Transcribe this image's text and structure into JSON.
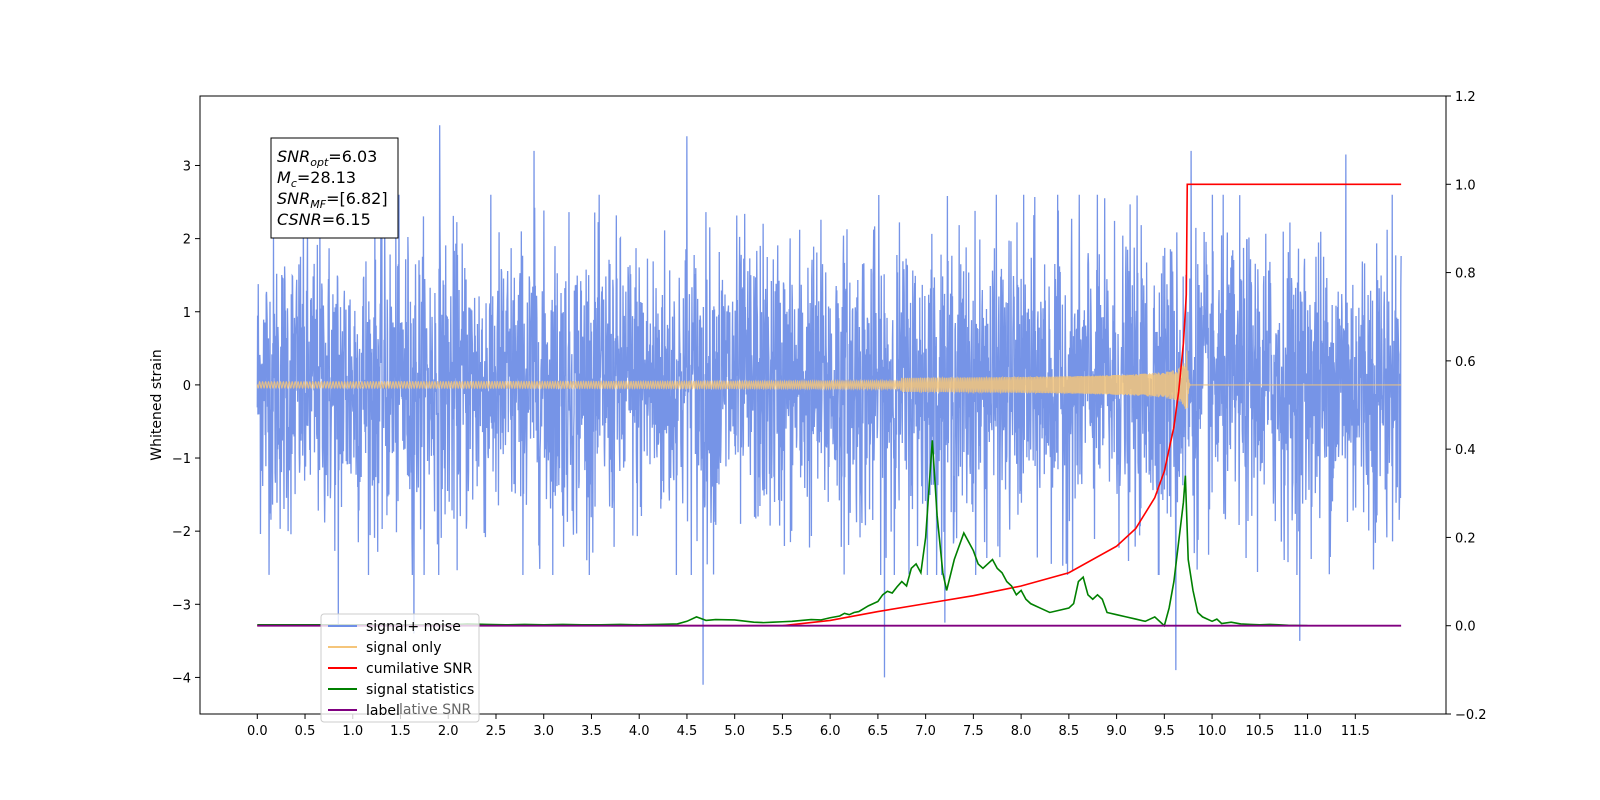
{
  "chart_data": {
    "type": "line",
    "ylabel": "Whitened strain",
    "x_ticks": [
      "0.0",
      "0.5",
      "1.0",
      "1.5",
      "2.0",
      "2.5",
      "3.0",
      "3.5",
      "4.0",
      "4.5",
      "5.0",
      "5.5",
      "6.0",
      "6.5",
      "7.0",
      "7.5",
      "8.0",
      "8.5",
      "9.0",
      "9.5",
      "10.0",
      "10.5",
      "11.0",
      "11.5"
    ],
    "xlim": [
      -0.6,
      12.45
    ],
    "left_axis": {
      "ylim": [
        -4.5,
        3.95
      ],
      "ticks": [
        "3",
        "2",
        "1",
        "0",
        "−1",
        "−2",
        "−3",
        "−4"
      ],
      "tick_values": [
        3,
        2,
        1,
        0,
        -1,
        -2,
        -3,
        -4
      ]
    },
    "right_axis": {
      "ylim": [
        -0.2,
        1.2
      ],
      "ticks": [
        "1.2",
        "1.0",
        "0.8",
        "0.6",
        "0.4",
        "0.2",
        "0.0",
        "−0.2"
      ],
      "tick_values": [
        1.2,
        1.0,
        0.8,
        0.6,
        0.4,
        0.2,
        0.0,
        -0.2
      ]
    },
    "info_box": {
      "lines": [
        {
          "key": "SNR",
          "sub": "opt",
          "value": "=6.03"
        },
        {
          "key": "M",
          "sub": "c",
          "value": "=28.13"
        },
        {
          "key": "SNR",
          "sub": "MF",
          "value": "=[6.82]"
        },
        {
          "key": "CSNR",
          "sub": "",
          "value": "=6.15"
        }
      ]
    },
    "legend": {
      "placement": "lower-left",
      "entries": [
        {
          "label": "signal+ noise",
          "color": "#6f8ee6"
        },
        {
          "label": "signal only",
          "color": "#f5c57a"
        },
        {
          "label": "cumilative SNR",
          "color": "#ff0000"
        },
        {
          "label": "signal statistics",
          "color": "#008000"
        },
        {
          "label": "label",
          "color": "#800080"
        }
      ],
      "overlapped_text": "lative SNR"
    },
    "series": [
      {
        "name": "signal+ noise",
        "axis": "left",
        "style": "noise",
        "color": "#6f8ee6",
        "x_range": [
          0.0,
          11.98
        ],
        "typical_envelope": [
          -1.8,
          1.8
        ],
        "peaks": [
          {
            "x": 1.91,
            "y": 3.55
          },
          {
            "x": 4.5,
            "y": 3.4
          },
          {
            "x": 2.9,
            "y": 3.2
          },
          {
            "x": 9.78,
            "y": 3.2
          },
          {
            "x": 11.4,
            "y": 3.15
          },
          {
            "x": 0.85,
            "y": -3.3
          },
          {
            "x": 4.67,
            "y": -4.1
          },
          {
            "x": 6.57,
            "y": -4.0
          },
          {
            "x": 9.62,
            "y": -3.9
          },
          {
            "x": 10.92,
            "y": -3.5
          },
          {
            "x": 1.64,
            "y": -3.4
          },
          {
            "x": 7.2,
            "y": -3.25
          }
        ]
      },
      {
        "name": "signal only",
        "axis": "left",
        "style": "chirp",
        "color": "#f5c57a",
        "x_range": [
          0.0,
          11.98
        ],
        "merger_x": 9.74,
        "merger_amplitude": 0.5
      },
      {
        "name": "cumilative SNR",
        "axis": "right",
        "color": "#ff0000",
        "x": [
          0.0,
          5.5,
          6.0,
          6.5,
          7.0,
          7.5,
          8.0,
          8.5,
          9.0,
          9.2,
          9.4,
          9.5,
          9.6,
          9.65,
          9.7,
          9.73,
          9.74,
          11.98
        ],
        "values": [
          0.0,
          0.0,
          0.012,
          0.032,
          0.05,
          0.068,
          0.09,
          0.12,
          0.18,
          0.22,
          0.29,
          0.35,
          0.45,
          0.53,
          0.64,
          0.75,
          1.0,
          1.0
        ]
      },
      {
        "name": "signal statistics",
        "axis": "right",
        "color": "#008000",
        "x": [
          0.0,
          2.0,
          2.2,
          2.4,
          2.6,
          2.8,
          3.0,
          3.2,
          3.4,
          3.6,
          3.8,
          4.0,
          4.2,
          4.4,
          4.5,
          4.6,
          4.7,
          4.8,
          5.0,
          5.2,
          5.3,
          5.4,
          5.5,
          5.6,
          5.7,
          5.8,
          5.9,
          6.0,
          6.1,
          6.15,
          6.2,
          6.25,
          6.3,
          6.4,
          6.5,
          6.55,
          6.6,
          6.65,
          6.7,
          6.75,
          6.8,
          6.85,
          6.9,
          6.95,
          7.0,
          7.07,
          7.12,
          7.18,
          7.22,
          7.3,
          7.4,
          7.5,
          7.55,
          7.6,
          7.7,
          7.75,
          7.8,
          7.85,
          7.9,
          7.95,
          8.0,
          8.05,
          8.1,
          8.15,
          8.2,
          8.3,
          8.4,
          8.5,
          8.55,
          8.6,
          8.65,
          8.7,
          8.75,
          8.8,
          8.85,
          8.9,
          9.0,
          9.1,
          9.2,
          9.3,
          9.4,
          9.5,
          9.55,
          9.6,
          9.65,
          9.7,
          9.72,
          9.75,
          9.8,
          9.85,
          9.9,
          10.0,
          10.05,
          10.1,
          10.2,
          10.3,
          10.4,
          10.5,
          10.6,
          10.7,
          10.8,
          11.0
        ],
        "values": [
          0.002,
          0.002,
          0.004,
          0.003,
          0.002,
          0.003,
          0.002,
          0.003,
          0.002,
          0.002,
          0.003,
          0.002,
          0.003,
          0.004,
          0.01,
          0.02,
          0.012,
          0.014,
          0.013,
          0.008,
          0.007,
          0.008,
          0.009,
          0.01,
          0.012,
          0.014,
          0.013,
          0.018,
          0.022,
          0.028,
          0.025,
          0.03,
          0.032,
          0.045,
          0.055,
          0.07,
          0.078,
          0.074,
          0.088,
          0.1,
          0.09,
          0.13,
          0.14,
          0.12,
          0.2,
          0.42,
          0.25,
          0.12,
          0.08,
          0.15,
          0.21,
          0.17,
          0.14,
          0.13,
          0.15,
          0.13,
          0.12,
          0.1,
          0.09,
          0.07,
          0.08,
          0.06,
          0.05,
          0.045,
          0.04,
          0.03,
          0.035,
          0.04,
          0.05,
          0.1,
          0.11,
          0.07,
          0.06,
          0.07,
          0.06,
          0.03,
          0.025,
          0.02,
          0.015,
          0.01,
          0.02,
          0.0,
          0.04,
          0.1,
          0.19,
          0.28,
          0.34,
          0.15,
          0.08,
          0.03,
          0.02,
          0.01,
          0.015,
          0.005,
          0.008,
          0.004,
          0.003,
          0.002,
          0.003,
          0.002,
          0.001,
          0.0
        ]
      },
      {
        "name": "label",
        "axis": "right",
        "color": "#800080",
        "x": [
          0.0,
          11.98
        ],
        "values": [
          0.0,
          0.0
        ]
      }
    ]
  },
  "colors": {
    "signal_noise": "#6f8ee6",
    "signal_only": "#f5c57a",
    "cumulative_snr": "#ff0000",
    "signal_statistics": "#008000",
    "label": "#800080"
  }
}
